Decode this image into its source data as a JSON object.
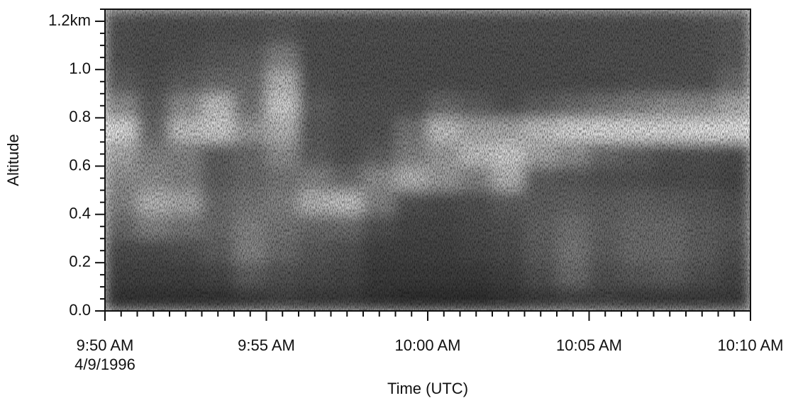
{
  "chart_data": {
    "type": "heatmap",
    "x_label": "Time (UTC)",
    "y_label": "Altitude",
    "x_date_label": "4/9/1996",
    "xlim": [
      0,
      20
    ],
    "ylim": [
      0,
      1.25
    ],
    "xticks": [
      {
        "value": 0,
        "label": "9:50 AM"
      },
      {
        "value": 5,
        "label": "9:55 AM"
      },
      {
        "value": 10,
        "label": "10:00 AM"
      },
      {
        "value": 15,
        "label": "10:05 AM"
      },
      {
        "value": 20,
        "label": "10:10 AM"
      }
    ],
    "xminorticks": [
      0.5,
      1,
      1.5,
      2,
      2.5,
      3,
      3.5,
      4,
      4.5,
      5.5,
      6,
      6.5,
      7,
      7.5,
      8,
      8.5,
      9,
      9.5,
      10.5,
      11,
      11.5,
      12,
      12.5,
      13,
      13.5,
      14,
      14.5,
      15.5,
      16,
      16.5,
      17,
      17.5,
      18,
      18.5,
      19,
      19.5
    ],
    "yticks": [
      0.0,
      0.2,
      0.4,
      0.6,
      0.8,
      1.0,
      {
        "value": 1.2,
        "label": "1.2km"
      }
    ],
    "yticks_labels_fix": null,
    "yminorticks": [
      0.05,
      0.1,
      0.15,
      0.25,
      0.3,
      0.35,
      0.45,
      0.5,
      0.55,
      0.65,
      0.7,
      0.75,
      0.85,
      0.9,
      0.95,
      1.05,
      1.1,
      1.15,
      1.25
    ],
    "x_bins": [
      0,
      1,
      2,
      3,
      4,
      5,
      6,
      7,
      8,
      9,
      10,
      11,
      12,
      13,
      14,
      15,
      16,
      17,
      18,
      19,
      20
    ],
    "y_bins": [
      0,
      0.1,
      0.2,
      0.3,
      0.4,
      0.5,
      0.6,
      0.7,
      0.8,
      0.9,
      1.0,
      1.1,
      1.2,
      1.25
    ],
    "values": [
      [
        22,
        22,
        22,
        22,
        25,
        28,
        25,
        25,
        22,
        20,
        20,
        20,
        22,
        25,
        28,
        28,
        25,
        25,
        25,
        25
      ],
      [
        28,
        28,
        28,
        30,
        40,
        35,
        32,
        30,
        25,
        25,
        25,
        25,
        28,
        35,
        45,
        35,
        38,
        40,
        35,
        30
      ],
      [
        32,
        32,
        35,
        40,
        55,
        45,
        38,
        35,
        28,
        28,
        28,
        30,
        32,
        40,
        50,
        40,
        45,
        45,
        40,
        35
      ],
      [
        45,
        55,
        50,
        45,
        55,
        50,
        45,
        45,
        35,
        30,
        30,
        32,
        35,
        42,
        48,
        42,
        45,
        45,
        40,
        38
      ],
      [
        55,
        75,
        70,
        45,
        50,
        55,
        75,
        80,
        55,
        35,
        32,
        35,
        40,
        40,
        42,
        40,
        42,
        40,
        38,
        35
      ],
      [
        60,
        60,
        55,
        40,
        45,
        50,
        55,
        45,
        60,
        75,
        65,
        55,
        75,
        40,
        38,
        35,
        35,
        32,
        32,
        30
      ],
      [
        70,
        55,
        55,
        40,
        45,
        60,
        40,
        35,
        40,
        55,
        65,
        80,
        85,
        70,
        60,
        45,
        40,
        35,
        35,
        32
      ],
      [
        90,
        45,
        80,
        85,
        65,
        75,
        38,
        35,
        35,
        50,
        80,
        70,
        70,
        80,
        88,
        90,
        90,
        90,
        92,
        92
      ],
      [
        60,
        40,
        60,
        80,
        50,
        85,
        40,
        35,
        35,
        35,
        45,
        40,
        35,
        40,
        45,
        50,
        55,
        60,
        60,
        70
      ],
      [
        40,
        35,
        40,
        45,
        45,
        75,
        35,
        32,
        32,
        32,
        32,
        32,
        32,
        32,
        32,
        32,
        35,
        35,
        35,
        45
      ],
      [
        35,
        32,
        35,
        38,
        40,
        55,
        33,
        32,
        32,
        32,
        32,
        32,
        32,
        32,
        32,
        33,
        33,
        33,
        35,
        38
      ],
      [
        35,
        33,
        33,
        35,
        35,
        38,
        33,
        33,
        33,
        33,
        33,
        33,
        33,
        33,
        33,
        33,
        33,
        33,
        35,
        38
      ],
      [
        38,
        35,
        35,
        35,
        35,
        35,
        35,
        35,
        35,
        35,
        35,
        35,
        35,
        35,
        35,
        35,
        35,
        35,
        38,
        40
      ]
    ]
  }
}
